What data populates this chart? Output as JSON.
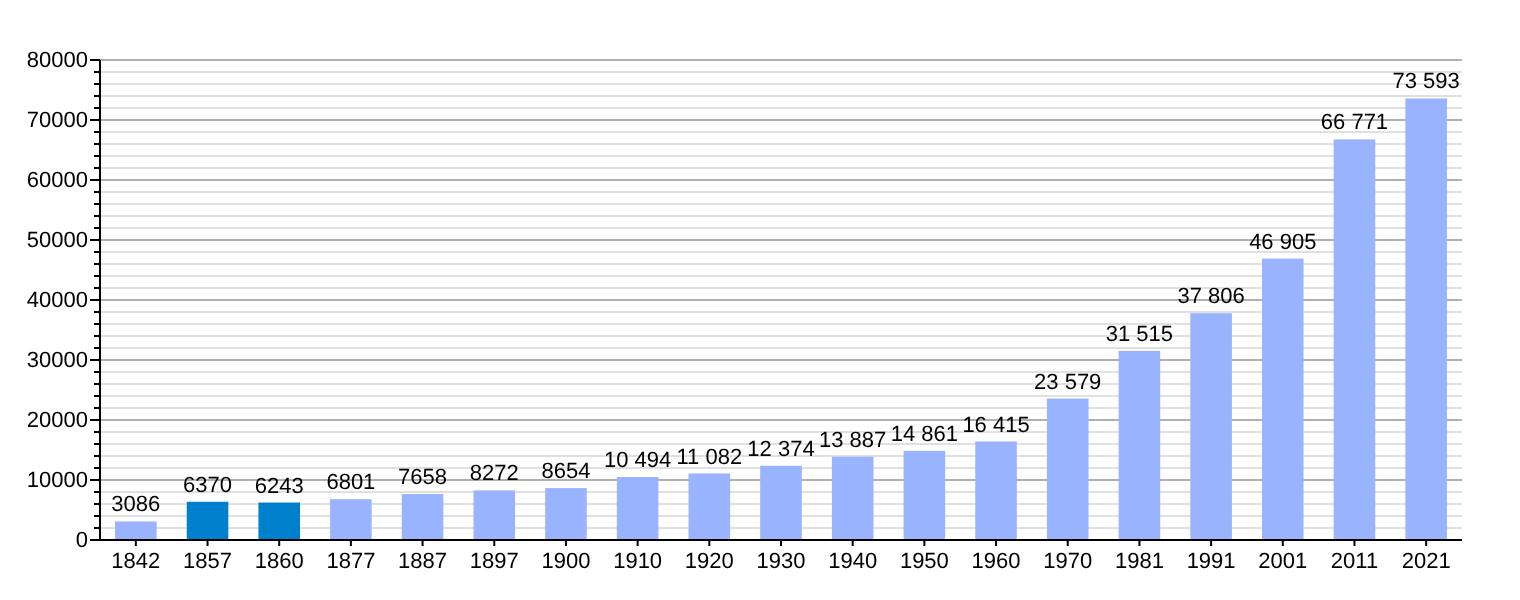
{
  "chart_data": {
    "type": "bar",
    "categories": [
      "1842",
      "1857",
      "1860",
      "1877",
      "1887",
      "1897",
      "1900",
      "1910",
      "1920",
      "1930",
      "1940",
      "1950",
      "1960",
      "1970",
      "1981",
      "1991",
      "2001",
      "2011",
      "2021"
    ],
    "values": [
      3086,
      6370,
      6243,
      6801,
      7658,
      8272,
      8654,
      10494,
      11082,
      12374,
      13887,
      14861,
      16415,
      23579,
      31515,
      37806,
      46905,
      66771,
      73593
    ],
    "colors": [
      "#99b3ff",
      "#0080cc",
      "#0080cc",
      "#99b3ff",
      "#99b3ff",
      "#99b3ff",
      "#99b3ff",
      "#99b3ff",
      "#99b3ff",
      "#99b3ff",
      "#99b3ff",
      "#99b3ff",
      "#99b3ff",
      "#99b3ff",
      "#99b3ff",
      "#99b3ff",
      "#99b3ff",
      "#99b3ff",
      "#99b3ff"
    ],
    "value_labels": [
      "3086",
      "6370",
      "6243",
      "6801",
      "7658",
      "8272",
      "8654",
      "10 494",
      "11 082",
      "12 374",
      "13 887",
      "14 861",
      "16 415",
      "23 579",
      "31 515",
      "37 806",
      "46 905",
      "66 771",
      "73 593"
    ],
    "ylim": [
      0,
      80000
    ],
    "yticks": [
      0,
      {
        "value": 2000,
        "label": null
      },
      {
        "value": 4000,
        "label": null
      },
      {
        "value": 6000,
        "label": null
      },
      {
        "value": 8000,
        "label": null
      },
      10000,
      {
        "value": 12000,
        "label": null
      },
      {
        "value": 14000,
        "label": null
      },
      {
        "value": 16000,
        "label": null
      },
      {
        "value": 18000,
        "label": null
      },
      20000,
      {
        "value": 22000,
        "label": null
      },
      {
        "value": 24000,
        "label": null
      },
      {
        "value": 26000,
        "label": null
      },
      {
        "value": 28000,
        "label": null
      },
      30000,
      {
        "value": 32000,
        "label": null
      },
      {
        "value": 34000,
        "label": null
      },
      {
        "value": 36000,
        "label": null
      },
      {
        "value": 38000,
        "label": null
      },
      40000,
      {
        "value": 42000,
        "label": null
      },
      {
        "value": 44000,
        "label": null
      },
      {
        "value": 46000,
        "label": null
      },
      {
        "value": 48000,
        "label": null
      },
      50000,
      {
        "value": 52000,
        "label": null
      },
      {
        "value": 54000,
        "label": null
      },
      {
        "value": 56000,
        "label": null
      },
      {
        "value": 58000,
        "label": null
      },
      60000,
      {
        "value": 62000,
        "label": null
      },
      {
        "value": 64000,
        "label": null
      },
      {
        "value": 66000,
        "label": null
      },
      {
        "value": 68000,
        "label": null
      },
      70000,
      {
        "value": 72000,
        "label": null
      },
      {
        "value": 74000,
        "label": null
      },
      {
        "value": 76000,
        "label": null
      },
      {
        "value": 78000,
        "label": null
      },
      80000
    ],
    "grid": "y"
  }
}
